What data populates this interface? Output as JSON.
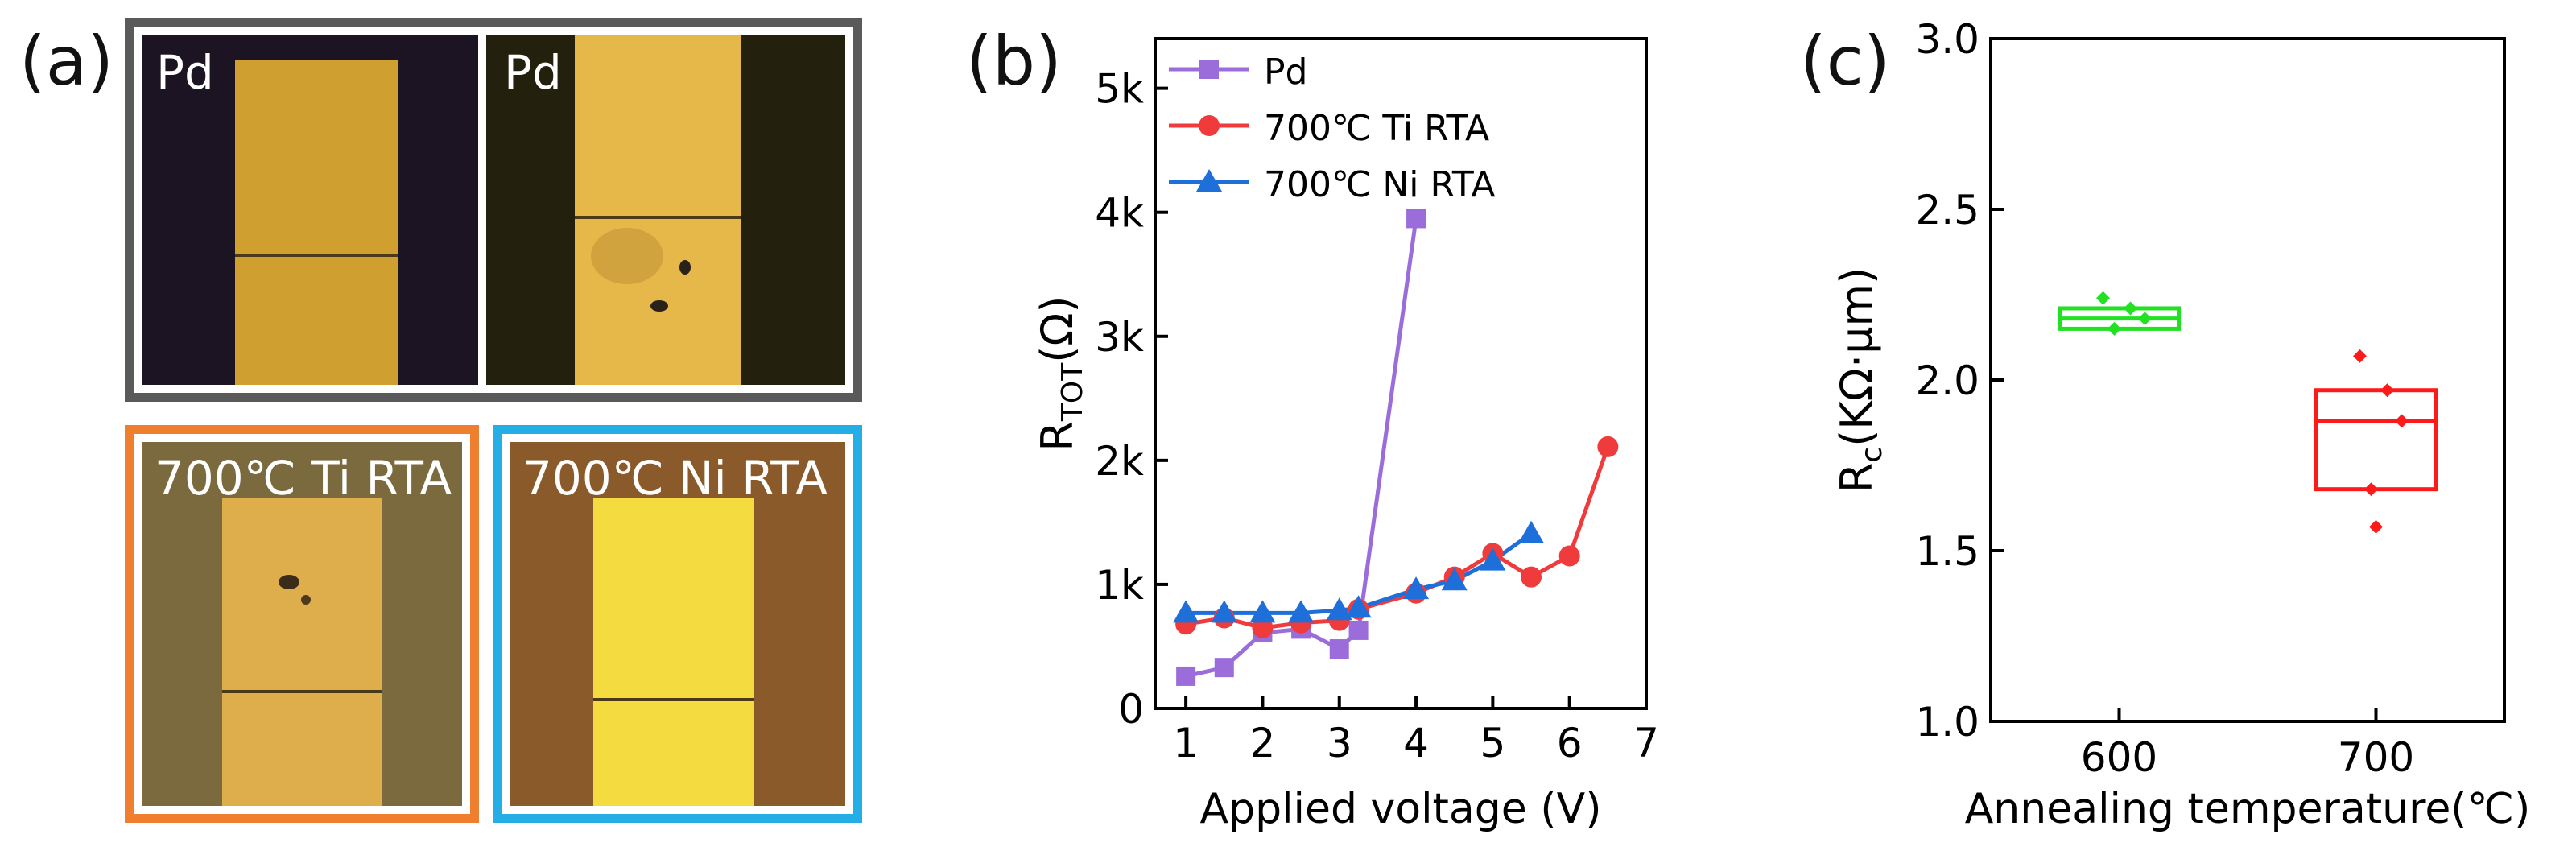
{
  "panels": {
    "a": "(a)",
    "b": "(b)",
    "c": "(c)"
  },
  "photos": [
    {
      "tag": "Pd"
    },
    {
      "tag": "Pd"
    },
    {
      "tag": "700℃ Ti RTA"
    },
    {
      "tag": "700℃ Ni RTA"
    }
  ],
  "frame_colors": {
    "pd": "#5a5a5a",
    "ti": "#ef7f2e",
    "ni": "#25aee6"
  },
  "chart_data": [
    {
      "type": "line",
      "xlabel": "Applied voltage (V)",
      "ylabel_main": "R",
      "ylabel_sub": "TOT",
      "ylabel_rest": "(Ω)",
      "xlim": [
        0.6,
        7
      ],
      "ylim": [
        0,
        5400
      ],
      "xticks": [
        1,
        2,
        3,
        4,
        5,
        6,
        7
      ],
      "yticks": [
        0,
        1000,
        2000,
        3000,
        4000,
        5000
      ],
      "ytick_labels": [
        "0",
        "1k",
        "2k",
        "3k",
        "4k",
        "5k"
      ],
      "series": [
        {
          "name": "Pd",
          "color": "#9b6ddb",
          "marker": "square",
          "x": [
            1,
            1.5,
            2,
            2.5,
            3,
            3.25,
            4
          ],
          "y": [
            260,
            330,
            610,
            640,
            480,
            630,
            3950
          ]
        },
        {
          "name": "700℃ Ti RTA",
          "color": "#ef3b3b",
          "marker": "circle",
          "x": [
            1,
            1.5,
            2,
            2.5,
            3,
            3.25,
            4,
            4.5,
            5,
            5.5,
            6,
            6.5
          ],
          "y": [
            680,
            730,
            650,
            690,
            710,
            800,
            930,
            1060,
            1250,
            1060,
            1230,
            2110
          ]
        },
        {
          "name": "700℃ Ni RTA",
          "color": "#1f6fdb",
          "marker": "triangle",
          "x": [
            1,
            1.5,
            2,
            2.5,
            3,
            3.25,
            4,
            4.5,
            5,
            5.5
          ],
          "y": [
            770,
            770,
            770,
            770,
            790,
            810,
            960,
            1030,
            1190,
            1410
          ]
        }
      ]
    },
    {
      "type": "box",
      "xlabel": "Annealing temperature(℃)",
      "ylabel_main": "R",
      "ylabel_sub": "c",
      "ylabel_rest": "(KΩ·μm)",
      "categories": [
        "600",
        "700"
      ],
      "ylim": [
        1.0,
        3.0
      ],
      "yticks": [
        1.0,
        1.5,
        2.0,
        2.5,
        3.0
      ],
      "ytick_labels": [
        "1.0",
        "1.5",
        "2.0",
        "2.5",
        "3.0"
      ],
      "boxes": [
        {
          "category": "600",
          "color": "#22e022",
          "q1": 2.15,
          "median": 2.18,
          "q3": 2.21,
          "points": [
            2.24,
            2.21,
            2.18,
            2.15
          ]
        },
        {
          "category": "700",
          "color": "#ff1a1a",
          "q1": 1.68,
          "median": 1.88,
          "q3": 1.97,
          "points": [
            2.07,
            1.97,
            1.88,
            1.68,
            1.57
          ]
        }
      ]
    }
  ]
}
